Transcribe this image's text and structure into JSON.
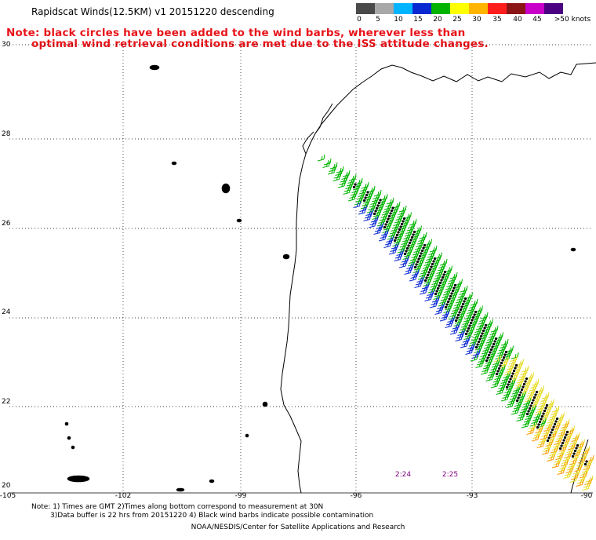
{
  "title": "Rapidscat Winds(12.5KM) v1 20151220 descending",
  "note": {
    "line1": "Note: black circles have been added to the wind barbs, wherever less than",
    "line2": "optimal wind retrieval conditions are met due to the ISS attitude changes."
  },
  "legend": {
    "labels": [
      "0",
      "5",
      "10",
      "15",
      "20",
      "25",
      "30",
      "35",
      "40",
      "45",
      ">50 knots"
    ],
    "colors": [
      "#4a4a4a",
      "#a8a8a8",
      "#00b4ff",
      "#0a28d2",
      "#00b400",
      "#ffff00",
      "#ffb400",
      "#ff1e1e",
      "#8b1414",
      "#c800c8",
      "#4b0082"
    ]
  },
  "axes": {
    "lat_labels": [
      "30",
      "28",
      "26",
      "24",
      "22",
      "20"
    ],
    "lon_labels": [
      "-105",
      "-102",
      "-99",
      "-96",
      "-93",
      "-90"
    ]
  },
  "pass_times": [
    "2:24",
    "2:25"
  ],
  "footer": {
    "line1": "Note: 1) Times are GMT 2)Times along bottom correspond to measurement at 30N",
    "line2": "3)Data buffer is 22 hrs from 20151220 4) Black wind barbs indicate possible contamination",
    "credit": "NOAA/NESDIS/Center for Satellite Applications and Research"
  },
  "colors": {
    "note": "#e8141a",
    "pass_time": "#800080",
    "barb_green": "#00b400",
    "barb_blue": "#0a28d2",
    "barb_yellow": "#e6dc28",
    "barb_orange": "#ff9600",
    "flag_circle": "#000000"
  }
}
